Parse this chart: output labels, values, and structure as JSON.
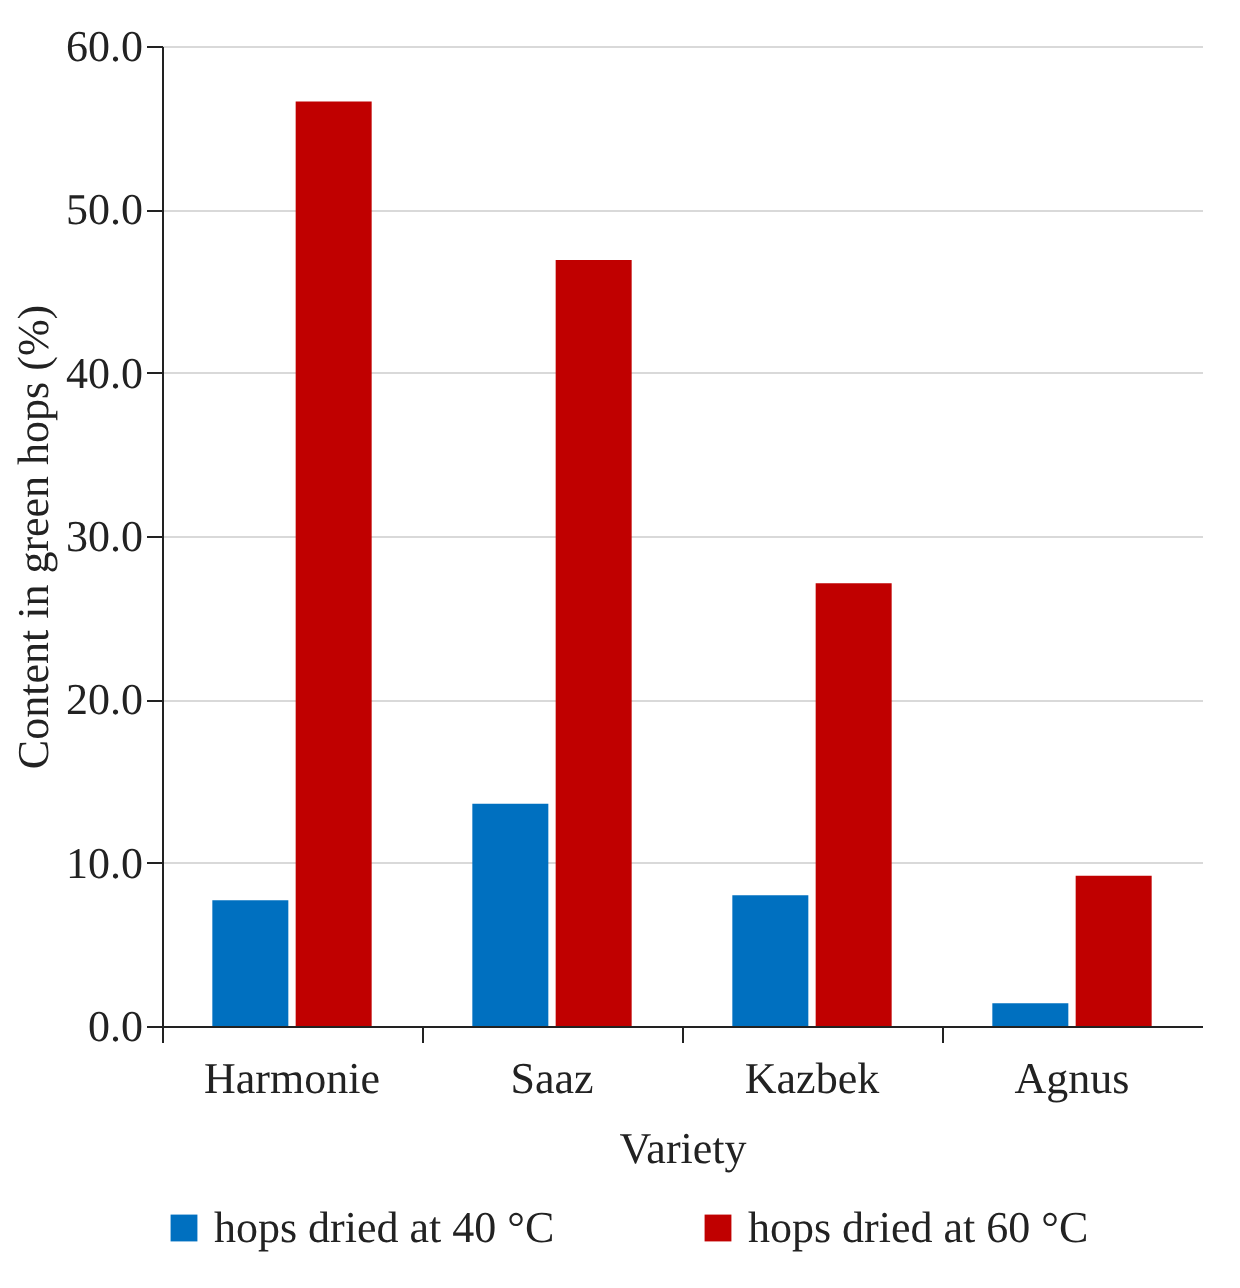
{
  "chart_data": {
    "type": "bar",
    "xlabel": "Variety",
    "ylabel": "Content in green hops (%)",
    "categories": [
      "Harmonie",
      "Saaz",
      "Kazbek",
      "Agnus"
    ],
    "series": [
      {
        "name": "hops dried at 40 °C",
        "color": "#0070c0",
        "values": [
          7.7,
          13.6,
          8.0,
          1.4
        ]
      },
      {
        "name": "hops dried at 60 °C",
        "color": "#c00000",
        "values": [
          56.6,
          46.9,
          27.1,
          9.2
        ]
      }
    ],
    "ylim": [
      0,
      60
    ],
    "yticks": [
      {
        "value": 0,
        "label": "0.0"
      },
      {
        "value": 10,
        "label": "10.0"
      },
      {
        "value": 20,
        "label": "20.0"
      },
      {
        "value": 30,
        "label": "30.0"
      },
      {
        "value": 40,
        "label": "40.0"
      },
      {
        "value": 50,
        "label": "50.0"
      },
      {
        "value": 60,
        "label": "60.0"
      }
    ],
    "grid": "y",
    "legend": "bottom"
  }
}
